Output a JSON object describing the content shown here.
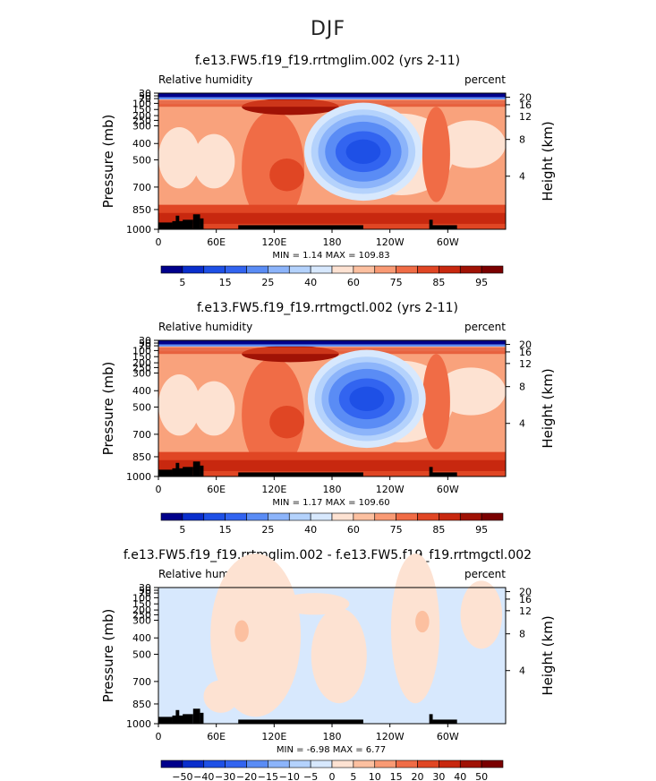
{
  "figure": {
    "super_title": "DJF"
  },
  "chart_data": [
    {
      "type": "heatmap",
      "title": "f.e13.FW5.f19_f19.rrtmglim.002 (yrs 2-11)",
      "left_label": "Relative humidity",
      "right_label": "percent",
      "ylabel": "Pressure (mb)",
      "y2label": "Height (km)",
      "x_ticks": [
        "0",
        "60E",
        "120E",
        "180",
        "120W",
        "60W"
      ],
      "y_ticks": [
        "30",
        "50",
        "70",
        "100",
        "150",
        "200",
        "250",
        "300",
        "400",
        "500",
        "700",
        "850",
        "1000"
      ],
      "y2_ticks": [
        "20",
        "16",
        "12",
        "8",
        "4"
      ],
      "ylim": [
        1000,
        30
      ],
      "stats": "MIN =    1.14   MAX = 109.83",
      "min": 1.14,
      "max": 109.83,
      "colorbar_labels": [
        "5",
        "15",
        "25",
        "40",
        "60",
        "75",
        "85",
        "95"
      ]
    },
    {
      "type": "heatmap",
      "title": "f.e13.FW5.f19_f19.rrtmgctl.002 (yrs 2-11)",
      "left_label": "Relative humidity",
      "right_label": "percent",
      "ylabel": "Pressure (mb)",
      "y2label": "Height (km)",
      "x_ticks": [
        "0",
        "60E",
        "120E",
        "180",
        "120W",
        "60W"
      ],
      "y_ticks": [
        "30",
        "50",
        "70",
        "100",
        "150",
        "200",
        "250",
        "300",
        "400",
        "500",
        "700",
        "850",
        "1000"
      ],
      "y2_ticks": [
        "20",
        "16",
        "12",
        "8",
        "4"
      ],
      "ylim": [
        1000,
        30
      ],
      "stats": "MIN =    1.17   MAX = 109.60",
      "min": 1.17,
      "max": 109.6,
      "colorbar_labels": [
        "5",
        "15",
        "25",
        "40",
        "60",
        "75",
        "85",
        "95"
      ]
    },
    {
      "type": "heatmap",
      "title": "f.e13.FW5.f19_f19.rrtmglim.002 - f.e13.FW5.f19_f19.rrtmgctl.002",
      "left_label": "Relative humidity",
      "right_label": "percent",
      "ylabel": "Pressure (mb)",
      "y2label": "Height (km)",
      "x_ticks": [
        "0",
        "60E",
        "120E",
        "180",
        "120W",
        "60W"
      ],
      "y_ticks": [
        "30",
        "50",
        "70",
        "100",
        "150",
        "200",
        "250",
        "300",
        "400",
        "500",
        "700",
        "850",
        "1000"
      ],
      "y2_ticks": [
        "20",
        "16",
        "12",
        "8",
        "4"
      ],
      "ylim": [
        1000,
        30
      ],
      "stats": "MIN =   -6.98   MAX =   6.77",
      "min": -6.98,
      "max": 6.77,
      "colorbar_labels": [
        "−50",
        "−40",
        "−30",
        "−20",
        "−15",
        "−10",
        "−5",
        "0",
        "5",
        "10",
        "15",
        "20",
        "30",
        "40",
        "50"
      ]
    }
  ],
  "colors": {
    "abs_scale": [
      "#00008b",
      "#0a2ecc",
      "#1e50e6",
      "#3264f0",
      "#5a8cf5",
      "#8cb4fa",
      "#b4d2fc",
      "#d7e8fd",
      "#fde2d2",
      "#fcc0a0",
      "#f99a74",
      "#f06c46",
      "#e04624",
      "#c8280f",
      "#a01205",
      "#7a0000"
    ],
    "diff_scale": [
      "#00008b",
      "#0a2ecc",
      "#1e50e6",
      "#3264f0",
      "#5a8cf5",
      "#8cb4fa",
      "#b4d2fc",
      "#d7e8fd",
      "#fde2d2",
      "#fcc0a0",
      "#f99a74",
      "#f06c46",
      "#e04624",
      "#c8280f",
      "#a01205",
      "#7a0000"
    ]
  }
}
